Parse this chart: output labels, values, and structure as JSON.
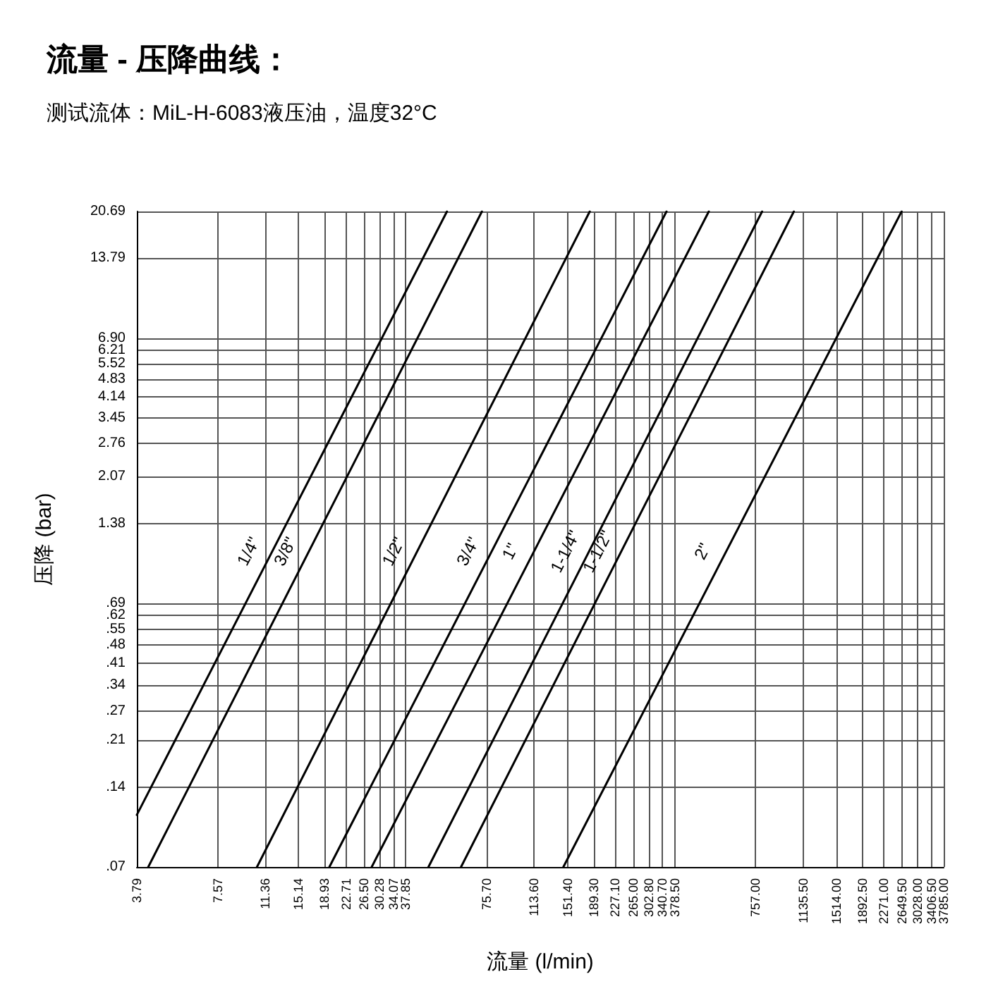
{
  "chart_data": {
    "type": "line",
    "title": "流量 - 压降曲线：",
    "subtitle": "测试流体：MiL-H-6083液压油，温度32°C",
    "xlabel": "流量 (l/min)",
    "ylabel": "压降 (bar)",
    "log": "xy",
    "grid": true,
    "legend": false,
    "marker": "none",
    "line_style": "solid",
    "xlim": [
      3.79,
      3785
    ],
    "ylim": [
      0.07,
      20.69
    ],
    "xticks": [
      3.79,
      7.57,
      11.36,
      15.14,
      18.93,
      22.71,
      {
        "value": 26.5,
        "label": "26.50"
      },
      30.28,
      34.07,
      37.85,
      {
        "value": 75.7,
        "label": "75.70"
      },
      {
        "value": 113.6,
        "label": "113.60"
      },
      {
        "value": 151.4,
        "label": "151.40"
      },
      {
        "value": 189.3,
        "label": "189.30"
      },
      {
        "value": 227.1,
        "label": "227.10"
      },
      {
        "value": 265,
        "label": "265.00"
      },
      {
        "value": 302.8,
        "label": "302.80"
      },
      {
        "value": 340.7,
        "label": "340.70"
      },
      {
        "value": 378.5,
        "label": "378.50"
      },
      {
        "value": 757,
        "label": "757.00"
      },
      {
        "value": 1135.5,
        "label": "1135.50"
      },
      {
        "value": 1514,
        "label": "1514.00"
      },
      {
        "value": 1892.5,
        "label": "1892.50"
      },
      {
        "value": 2271,
        "label": "2271.00"
      },
      {
        "value": 2649.5,
        "label": "2649.50"
      },
      {
        "value": 3028,
        "label": "3028.00"
      },
      {
        "value": 3406.5,
        "label": "3406.50"
      },
      {
        "value": 3785,
        "label": "3785.00"
      }
    ],
    "yticks": [
      {
        "value": 0.07,
        "label": ".07"
      },
      {
        "value": 0.14,
        "label": ".14"
      },
      {
        "value": 0.21,
        "label": ".21"
      },
      {
        "value": 0.27,
        "label": ".27"
      },
      {
        "value": 0.34,
        "label": ".34"
      },
      {
        "value": 0.41,
        "label": ".41"
      },
      {
        "value": 0.48,
        "label": ".48"
      },
      {
        "value": 0.55,
        "label": ".55"
      },
      {
        "value": 0.62,
        "label": ".62"
      },
      {
        "value": 0.69,
        "label": ".69"
      },
      1.38,
      2.07,
      2.76,
      3.45,
      4.14,
      4.83,
      5.52,
      6.21,
      {
        "value": 6.9,
        "label": "6.90"
      },
      13.79,
      20.69
    ],
    "series": [
      {
        "name": "1/4\"",
        "color": "#000000",
        "x": [
          3.79,
          53.9
        ],
        "values": [
          0.11,
          20.69
        ]
      },
      {
        "name": "3/8\"",
        "color": "#000000",
        "x": [
          4.18,
          72.7
        ],
        "values": [
          0.07,
          20.69
        ]
      },
      {
        "name": "1/2\"",
        "color": "#000000",
        "x": [
          10.6,
          183
        ],
        "values": [
          0.07,
          20.69
        ]
      },
      {
        "name": "3/4\"",
        "color": "#000000",
        "x": [
          19.7,
          353
        ],
        "values": [
          0.07,
          20.69
        ]
      },
      {
        "name": "1\"",
        "color": "#000000",
        "x": [
          28.3,
          507
        ],
        "values": [
          0.07,
          20.69
        ]
      },
      {
        "name": "1-1/4\"",
        "color": "#000000",
        "x": [
          46,
          800
        ],
        "values": [
          0.07,
          20.69
        ]
      },
      {
        "name": "1-1/2\"",
        "color": "#000000",
        "x": [
          60.8,
          1050
        ],
        "values": [
          0.07,
          20.69
        ]
      },
      {
        "name": "2\"",
        "color": "#000000",
        "x": [
          146,
          2641
        ],
        "values": [
          0.07,
          20.69
        ]
      }
    ]
  }
}
